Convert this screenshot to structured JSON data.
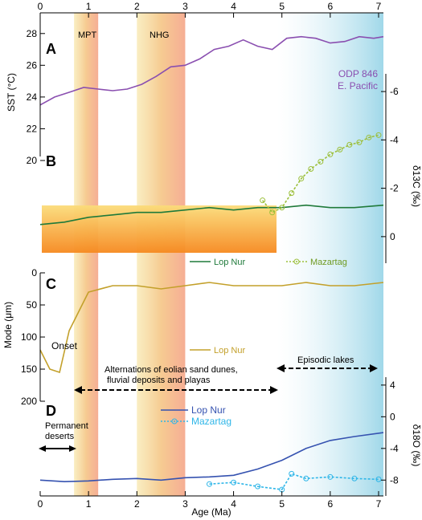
{
  "chart_data": {
    "type": "line",
    "xlabel": "Age (Ma)",
    "xlim": [
      0,
      7.1
    ],
    "x_ticks": [
      0,
      1,
      2,
      3,
      4,
      5,
      6,
      7
    ],
    "shaded_intervals": [
      {
        "label": "MPT",
        "start": 0.7,
        "end": 1.2,
        "color": "#f2b77a"
      },
      {
        "label": "NHG",
        "start": 2.0,
        "end": 3.0,
        "color": "#f2b77a"
      },
      {
        "label": "",
        "start": 4.9,
        "end": 7.1,
        "color": "#a6dceb"
      }
    ],
    "panels": [
      {
        "letter": "A",
        "ylabel": "SST (°C)",
        "ylim": [
          20,
          29
        ],
        "y_ticks": [
          20,
          22,
          24,
          26,
          28
        ],
        "series": [
          {
            "name": "ODP 846 E. Pacific",
            "color": "#8a4fb0",
            "x": [
              0,
              0.3,
              0.6,
              0.9,
              1.2,
              1.5,
              1.8,
              2.1,
              2.4,
              2.7,
              3.0,
              3.3,
              3.6,
              3.9,
              4.2,
              4.5,
              4.8,
              5.1,
              5.4,
              5.7,
              6.0,
              6.3,
              6.6,
              6.9,
              7.1
            ],
            "y": [
              23.5,
              24.0,
              24.3,
              24.6,
              24.5,
              24.4,
              24.5,
              24.8,
              25.3,
              25.9,
              26.0,
              26.4,
              27.0,
              27.2,
              27.6,
              27.2,
              27.0,
              27.7,
              27.8,
              27.7,
              27.4,
              27.5,
              27.8,
              27.7,
              27.8
            ]
          }
        ]
      },
      {
        "letter": "B",
        "ylabel": "δ13C (‰)",
        "ylim": [
          -1,
          6.6
        ],
        "y_ticks": [
          0,
          2,
          4,
          6
        ],
        "y_tick_labels": [
          "0",
          "-2",
          "-4",
          "-6"
        ],
        "series": [
          {
            "name": "Lop Nur",
            "color": "#1f7a3a",
            "x": [
              0,
              0.5,
              1.0,
              1.5,
              2.0,
              2.5,
              3.0,
              3.5,
              4.0,
              4.5,
              5.0,
              5.5,
              6.0,
              6.5,
              7.1
            ],
            "y": [
              0.5,
              0.6,
              0.8,
              0.9,
              1.0,
              1.0,
              1.1,
              1.2,
              1.1,
              1.2,
              1.2,
              1.3,
              1.2,
              1.2,
              1.3
            ]
          },
          {
            "name": "Mazartag",
            "color": "#9cbf3a",
            "x": [
              4.6,
              4.8,
              5.0,
              5.2,
              5.4,
              5.6,
              5.8,
              6.0,
              6.2,
              6.4,
              6.6,
              6.8,
              7.0
            ],
            "y": [
              1.5,
              1.0,
              1.2,
              1.8,
              2.4,
              2.8,
              3.1,
              3.4,
              3.6,
              3.8,
              3.9,
              4.1,
              4.2
            ]
          }
        ]
      },
      {
        "letter": "C",
        "ylabel": "Mode (μm)",
        "ylim": [
          0,
          200
        ],
        "y_ticks": [
          0,
          50,
          100,
          150,
          200
        ],
        "y_inverted": true,
        "series": [
          {
            "name": "Lop Nur",
            "color": "#c3a02a",
            "x": [
              0,
              0.2,
              0.4,
              0.6,
              0.8,
              1.0,
              1.5,
              2.0,
              2.5,
              3.0,
              3.5,
              4.0,
              4.5,
              5.0,
              5.5,
              6.0,
              6.5,
              7.1
            ],
            "y": [
              120,
              150,
              155,
              90,
              60,
              30,
              20,
              20,
              25,
              20,
              15,
              20,
              20,
              20,
              15,
              20,
              20,
              15
            ]
          }
        ]
      },
      {
        "letter": "D",
        "ylabel": "δ18O (‰)",
        "ylim": [
          -10,
          5
        ],
        "y_ticks": [
          -8,
          -4,
          0,
          4
        ],
        "y_tick_labels": [
          "-8",
          "-4",
          "0",
          "4"
        ],
        "series": [
          {
            "name": "Lop Nur",
            "color": "#3552b0",
            "x": [
              0,
              0.5,
              1.0,
              1.5,
              2.0,
              2.5,
              3.0,
              3.5,
              4.0,
              4.5,
              5.0,
              5.5,
              6.0,
              6.5,
              7.1
            ],
            "y": [
              -8.0,
              -8.2,
              -8.1,
              -7.9,
              -7.8,
              -8.0,
              -7.7,
              -7.6,
              -7.4,
              -6.6,
              -5.5,
              -4.0,
              -3.0,
              -2.5,
              -2.0
            ]
          },
          {
            "name": "Mazartag",
            "color": "#2fb6e8",
            "x": [
              3.5,
              4.0,
              4.5,
              5.0,
              5.2,
              5.5,
              6.0,
              6.5,
              7.0
            ],
            "y": [
              -8.5,
              -8.3,
              -8.8,
              -9.2,
              -7.2,
              -7.8,
              -7.6,
              -7.8,
              -7.9
            ]
          }
        ]
      }
    ],
    "annotations": {
      "mpt": "MPT",
      "nhg": "NHG",
      "odp_line1": "ODP 846",
      "odp_line2": "E. Pacific",
      "lop_nur_b": "Lop Nur",
      "mazartag_b": "Mazartag",
      "lop_nur_c": "Lop Nur",
      "onset": "Onset",
      "alternations_line1": "Alternations of eolian sand dunes,",
      "alternations_line2": "fluvial deposits and playas",
      "episodic_lakes": "Episodic lakes",
      "lop_nur_d": "Lop Nur",
      "mazartag_d": "Mazartag",
      "permanent_line1": "Permanent",
      "permanent_line2": "deserts"
    }
  }
}
